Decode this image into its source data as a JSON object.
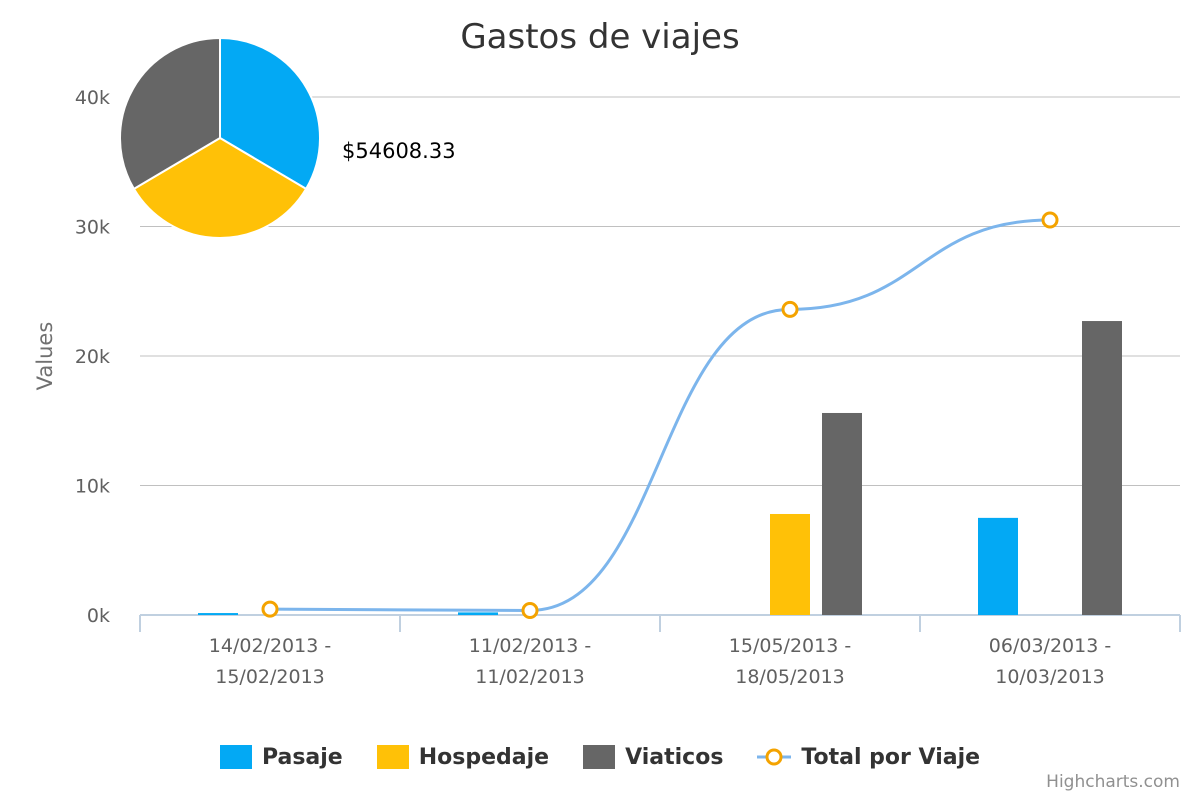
{
  "credits": "Highcharts.com",
  "pie_label": "$54608.33",
  "chart_data": {
    "type": "bar",
    "title": "Gastos de viajes",
    "ylabel": "Values",
    "xlabel": "",
    "ylim": [
      0,
      40000
    ],
    "yticks": [
      0,
      10000,
      20000,
      30000,
      40000
    ],
    "ytick_labels": [
      "0k",
      "10k",
      "20k",
      "30k",
      "40k"
    ],
    "categories": [
      [
        "14/02/2013 -",
        "15/02/2013"
      ],
      [
        "11/02/2013 -",
        "11/02/2013"
      ],
      [
        "15/05/2013 -",
        "18/05/2013"
      ],
      [
        "06/03/2013 -",
        "10/03/2013"
      ]
    ],
    "series": [
      {
        "name": "Pasaje",
        "kind": "column",
        "color": "#03a9f4",
        "values": [
          150,
          200,
          0,
          7500
        ]
      },
      {
        "name": "Hospedaje",
        "kind": "column",
        "color": "#ffc107",
        "values": [
          0,
          0,
          7800,
          0
        ]
      },
      {
        "name": "Viaticos",
        "kind": "column",
        "color": "#666666",
        "values": [
          0,
          0,
          15600,
          22700
        ]
      },
      {
        "name": "Total por Viaje",
        "kind": "spline",
        "color": "#7cb5ec",
        "marker_color": "#f4a300",
        "values": [
          450,
          350,
          23600,
          30500
        ]
      }
    ],
    "pie": {
      "slices": [
        {
          "name": "Pasaje",
          "value": 33.5,
          "color": "#03a9f4"
        },
        {
          "name": "Hospedaje",
          "value": 33.0,
          "color": "#ffc107"
        },
        {
          "name": "Viaticos",
          "value": 33.5,
          "color": "#666666"
        }
      ]
    },
    "grid": true,
    "legend_position": "bottom-center"
  }
}
